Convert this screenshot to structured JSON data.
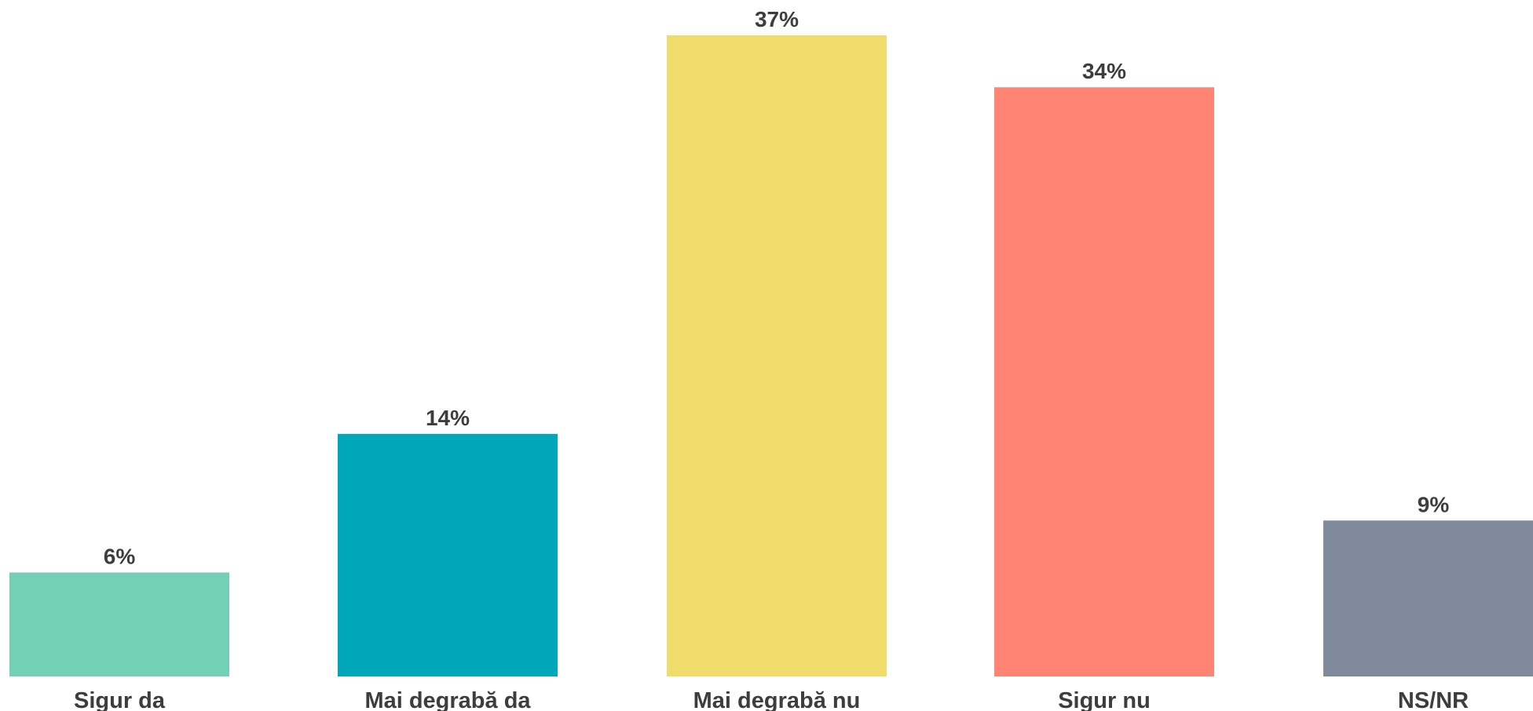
{
  "chart_data": {
    "type": "bar",
    "title": "",
    "xlabel": "",
    "ylabel": "",
    "categories": [
      "Sigur da",
      "Mai degrabă da",
      "Mai degrabă nu",
      "Sigur nu",
      "NS/NR"
    ],
    "values": [
      6,
      14,
      37,
      34,
      9
    ],
    "value_labels": [
      "6%",
      "14%",
      "37%",
      "34%",
      "9%"
    ],
    "colors": [
      "#74d0b4",
      "#00a7bb",
      "#f0dc6b",
      "#ff8474",
      "#7f8b9d"
    ],
    "ylim": [
      0,
      37
    ],
    "grid": false,
    "legend": "none"
  }
}
